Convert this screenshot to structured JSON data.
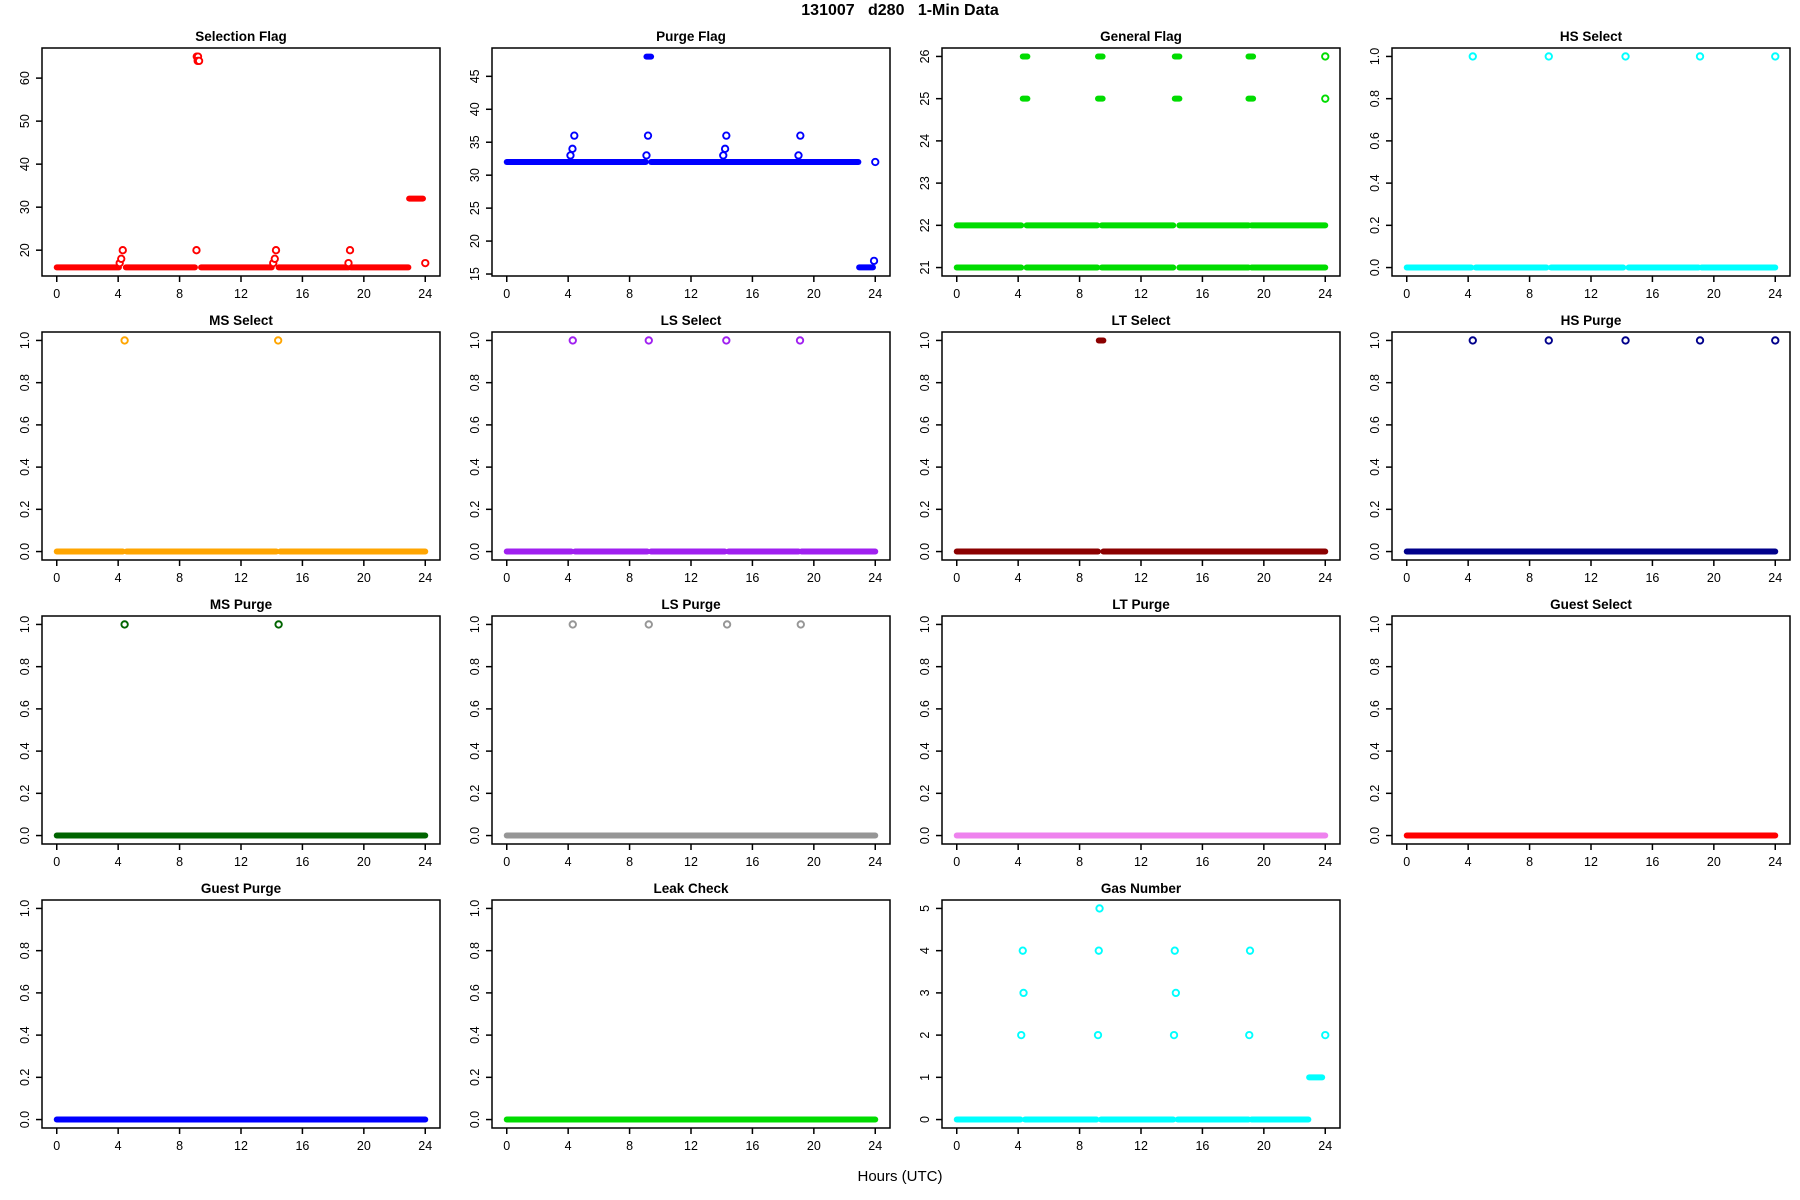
{
  "title": "131007   d280   1-Min Data",
  "xlabel": "Hours (UTC)",
  "chart_data": {
    "type": "scatter",
    "layout": {
      "rows": 4,
      "cols": 4,
      "grid": false,
      "xlim": [
        -0.96,
        24.96
      ],
      "xticks": [
        0,
        4,
        8,
        12,
        16,
        20,
        24
      ],
      "xtick_labels": [
        "0",
        "4",
        "8",
        "12",
        "16",
        "20",
        "24"
      ]
    },
    "plots": [
      {
        "name": "selection-flag",
        "title": "Selection Flag",
        "color": "#FF0000",
        "ylim": [
          14.0,
          67.0
        ],
        "yticks": [
          20,
          30,
          40,
          50,
          60
        ],
        "ytick_labels": [
          "20",
          "30",
          "40",
          "50",
          "60"
        ],
        "runs": [
          [
            16,
            0,
            4.05
          ],
          [
            16,
            4.5,
            9.0
          ],
          [
            16,
            9.4,
            14.0
          ],
          [
            16,
            14.45,
            19.0
          ],
          [
            16,
            19.15,
            22.9
          ],
          [
            32,
            22.95,
            23.85
          ]
        ],
        "points": [
          [
            4.1,
            17
          ],
          [
            4.2,
            18
          ],
          [
            4.3,
            20
          ],
          [
            9.1,
            20
          ],
          [
            9.12,
            65
          ],
          [
            9.2,
            65
          ],
          [
            9.18,
            64
          ],
          [
            9.27,
            64
          ],
          [
            14.1,
            17
          ],
          [
            14.2,
            18
          ],
          [
            14.28,
            20
          ],
          [
            19.0,
            17
          ],
          [
            19.1,
            20
          ],
          [
            24,
            17
          ]
        ]
      },
      {
        "name": "purge-flag",
        "title": "Purge Flag",
        "color": "#0000FF",
        "ylim": [
          14.7,
          49.3
        ],
        "yticks": [
          15,
          20,
          25,
          30,
          35,
          40,
          45
        ],
        "ytick_labels": [
          "15",
          "20",
          "25",
          "30",
          "35",
          "40",
          "45"
        ],
        "runs": [
          [
            32,
            0,
            9.05
          ],
          [
            32,
            9.4,
            22.9
          ],
          [
            48,
            9.1,
            9.4
          ],
          [
            16,
            22.95,
            23.85
          ]
        ],
        "points": [
          [
            4.15,
            33
          ],
          [
            4.28,
            34
          ],
          [
            4.4,
            36
          ],
          [
            9.1,
            33
          ],
          [
            9.2,
            36
          ],
          [
            14.1,
            33
          ],
          [
            14.22,
            34
          ],
          [
            14.3,
            36
          ],
          [
            19.0,
            33
          ],
          [
            19.12,
            36
          ],
          [
            23.92,
            17
          ],
          [
            24,
            32
          ]
        ]
      },
      {
        "name": "general-flag",
        "title": "General Flag",
        "color": "#00DC00",
        "ylim": [
          20.8,
          26.2
        ],
        "yticks": [
          21,
          22,
          23,
          24,
          25,
          26
        ],
        "ytick_labels": [
          "21",
          "22",
          "23",
          "24",
          "25",
          "26"
        ],
        "runs": [
          [
            21,
            0,
            4.2
          ],
          [
            21,
            4.55,
            9.15
          ],
          [
            21,
            9.45,
            14.1
          ],
          [
            21,
            14.5,
            19.0
          ],
          [
            21,
            19.2,
            24
          ],
          [
            22,
            0,
            4.2
          ],
          [
            22,
            4.55,
            9.15
          ],
          [
            22,
            9.45,
            14.1
          ],
          [
            22,
            14.5,
            19.0
          ],
          [
            22,
            19.2,
            24
          ],
          [
            25,
            4.3,
            4.6
          ],
          [
            25,
            9.2,
            9.5
          ],
          [
            25,
            14.2,
            14.5
          ],
          [
            25,
            19.0,
            19.3
          ],
          [
            26,
            4.3,
            4.6
          ],
          [
            26,
            9.2,
            9.5
          ],
          [
            26,
            14.2,
            14.5
          ],
          [
            26,
            19.0,
            19.3
          ]
        ],
        "points": [
          [
            24,
            25
          ],
          [
            24,
            26
          ]
        ]
      },
      {
        "name": "hs-select",
        "title": "HS Select",
        "color": "#00FFFF",
        "ylim": [
          -0.04,
          1.04
        ],
        "yticks": [
          0,
          0.2,
          0.4,
          0.6,
          0.8,
          1.0
        ],
        "ytick_labels": [
          "0.0",
          "0.2",
          "0.4",
          "0.6",
          "0.8",
          "1.0"
        ],
        "runs": [
          [
            0,
            0,
            4.2
          ],
          [
            0,
            4.5,
            9.1
          ],
          [
            0,
            9.4,
            14.1
          ],
          [
            0,
            14.45,
            19.0
          ],
          [
            0,
            19.2,
            24
          ]
        ],
        "points": [
          [
            4.3,
            1
          ],
          [
            9.25,
            1
          ],
          [
            14.25,
            1
          ],
          [
            19.1,
            1
          ],
          [
            24,
            1
          ]
        ]
      },
      {
        "name": "ms-select",
        "title": "MS Select",
        "color": "#FFA500",
        "ylim": [
          -0.04,
          1.04
        ],
        "yticks": [
          0,
          0.2,
          0.4,
          0.6,
          0.8,
          1.0
        ],
        "ytick_labels": [
          "0.0",
          "0.2",
          "0.4",
          "0.6",
          "0.8",
          "1.0"
        ],
        "runs": [
          [
            0,
            0,
            4.3
          ],
          [
            0,
            4.55,
            14.3
          ],
          [
            0,
            14.55,
            24
          ]
        ],
        "points": [
          [
            4.42,
            1
          ],
          [
            14.42,
            1
          ]
        ]
      },
      {
        "name": "ls-select",
        "title": "LS Select",
        "color": "#A020F0",
        "ylim": [
          -0.04,
          1.04
        ],
        "yticks": [
          0,
          0.2,
          0.4,
          0.6,
          0.8,
          1.0
        ],
        "ytick_labels": [
          "0.0",
          "0.2",
          "0.4",
          "0.6",
          "0.8",
          "1.0"
        ],
        "runs": [
          [
            0,
            0,
            4.2
          ],
          [
            0,
            4.45,
            9.15
          ],
          [
            0,
            9.4,
            14.2
          ],
          [
            0,
            14.45,
            19.0
          ],
          [
            0,
            19.2,
            24
          ]
        ],
        "points": [
          [
            4.3,
            1
          ],
          [
            9.25,
            1
          ],
          [
            14.3,
            1
          ],
          [
            19.1,
            1
          ]
        ]
      },
      {
        "name": "lt-select",
        "title": "LT Select",
        "color": "#8B0000",
        "ylim": [
          -0.04,
          1.04
        ],
        "yticks": [
          0,
          0.2,
          0.4,
          0.6,
          0.8,
          1.0
        ],
        "ytick_labels": [
          "0.0",
          "0.2",
          "0.4",
          "0.6",
          "0.8",
          "1.0"
        ],
        "runs": [
          [
            0,
            0,
            9.2
          ],
          [
            0,
            9.55,
            24
          ],
          [
            1,
            9.25,
            9.55
          ]
        ],
        "points": []
      },
      {
        "name": "hs-purge",
        "title": "HS Purge",
        "color": "#00008B",
        "ylim": [
          -0.04,
          1.04
        ],
        "yticks": [
          0,
          0.2,
          0.4,
          0.6,
          0.8,
          1.0
        ],
        "ytick_labels": [
          "0.0",
          "0.2",
          "0.4",
          "0.6",
          "0.8",
          "1.0"
        ],
        "runs": [
          [
            0,
            0,
            24
          ]
        ],
        "points": [
          [
            4.3,
            1
          ],
          [
            9.25,
            1
          ],
          [
            14.25,
            1
          ],
          [
            19.1,
            1
          ],
          [
            24,
            1
          ]
        ]
      },
      {
        "name": "ms-purge",
        "title": "MS Purge",
        "color": "#006400",
        "ylim": [
          -0.04,
          1.04
        ],
        "yticks": [
          0,
          0.2,
          0.4,
          0.6,
          0.8,
          1.0
        ],
        "ytick_labels": [
          "0.0",
          "0.2",
          "0.4",
          "0.6",
          "0.8",
          "1.0"
        ],
        "runs": [
          [
            0,
            0,
            24
          ]
        ],
        "points": [
          [
            4.42,
            1
          ],
          [
            14.45,
            1
          ]
        ]
      },
      {
        "name": "ls-purge",
        "title": "LS Purge",
        "color": "#969696",
        "ylim": [
          -0.04,
          1.04
        ],
        "yticks": [
          0,
          0.2,
          0.4,
          0.6,
          0.8,
          1.0
        ],
        "ytick_labels": [
          "0.0",
          "0.2",
          "0.4",
          "0.6",
          "0.8",
          "1.0"
        ],
        "runs": [
          [
            0,
            0,
            24
          ]
        ],
        "points": [
          [
            4.3,
            1
          ],
          [
            9.25,
            1
          ],
          [
            14.35,
            1
          ],
          [
            19.15,
            1
          ]
        ]
      },
      {
        "name": "lt-purge",
        "title": "LT Purge",
        "color": "#EE82EE",
        "ylim": [
          -0.04,
          1.04
        ],
        "yticks": [
          0,
          0.2,
          0.4,
          0.6,
          0.8,
          1.0
        ],
        "ytick_labels": [
          "0.0",
          "0.2",
          "0.4",
          "0.6",
          "0.8",
          "1.0"
        ],
        "runs": [
          [
            0,
            0,
            24
          ]
        ],
        "points": []
      },
      {
        "name": "guest-select",
        "title": "Guest Select",
        "color": "#FF0000",
        "ylim": [
          -0.04,
          1.04
        ],
        "yticks": [
          0,
          0.2,
          0.4,
          0.6,
          0.8,
          1.0
        ],
        "ytick_labels": [
          "0.0",
          "0.2",
          "0.4",
          "0.6",
          "0.8",
          "1.0"
        ],
        "runs": [
          [
            0,
            0,
            24
          ]
        ],
        "points": []
      },
      {
        "name": "guest-purge",
        "title": "Guest Purge",
        "color": "#0000FF",
        "ylim": [
          -0.04,
          1.04
        ],
        "yticks": [
          0,
          0.2,
          0.4,
          0.6,
          0.8,
          1.0
        ],
        "ytick_labels": [
          "0.0",
          "0.2",
          "0.4",
          "0.6",
          "0.8",
          "1.0"
        ],
        "runs": [
          [
            0,
            0,
            24
          ]
        ],
        "points": []
      },
      {
        "name": "leak-check",
        "title": "Leak Check",
        "color": "#00DC00",
        "ylim": [
          -0.04,
          1.04
        ],
        "yticks": [
          0,
          0.2,
          0.4,
          0.6,
          0.8,
          1.0
        ],
        "ytick_labels": [
          "0.0",
          "0.2",
          "0.4",
          "0.6",
          "0.8",
          "1.0"
        ],
        "runs": [
          [
            0,
            0,
            24
          ]
        ],
        "points": []
      },
      {
        "name": "gas-number",
        "title": "Gas Number",
        "color": "#00FFFF",
        "ylim": [
          -0.2,
          5.2
        ],
        "yticks": [
          0,
          1,
          2,
          3,
          4,
          5
        ],
        "ytick_labels": [
          "0",
          "1",
          "2",
          "3",
          "4",
          "5"
        ],
        "runs": [
          [
            0,
            0,
            4.15
          ],
          [
            0,
            4.45,
            9.1
          ],
          [
            0,
            9.4,
            14.1
          ],
          [
            0,
            14.4,
            19.0
          ],
          [
            0,
            19.2,
            22.9
          ],
          [
            1,
            22.95,
            23.8
          ]
        ],
        "points": [
          [
            4.2,
            2
          ],
          [
            4.35,
            3
          ],
          [
            4.3,
            4
          ],
          [
            9.2,
            2
          ],
          [
            9.25,
            4
          ],
          [
            9.3,
            5
          ],
          [
            14.15,
            2
          ],
          [
            14.27,
            3
          ],
          [
            14.2,
            4
          ],
          [
            19.05,
            2
          ],
          [
            19.1,
            4
          ],
          [
            24,
            2
          ]
        ]
      }
    ]
  }
}
